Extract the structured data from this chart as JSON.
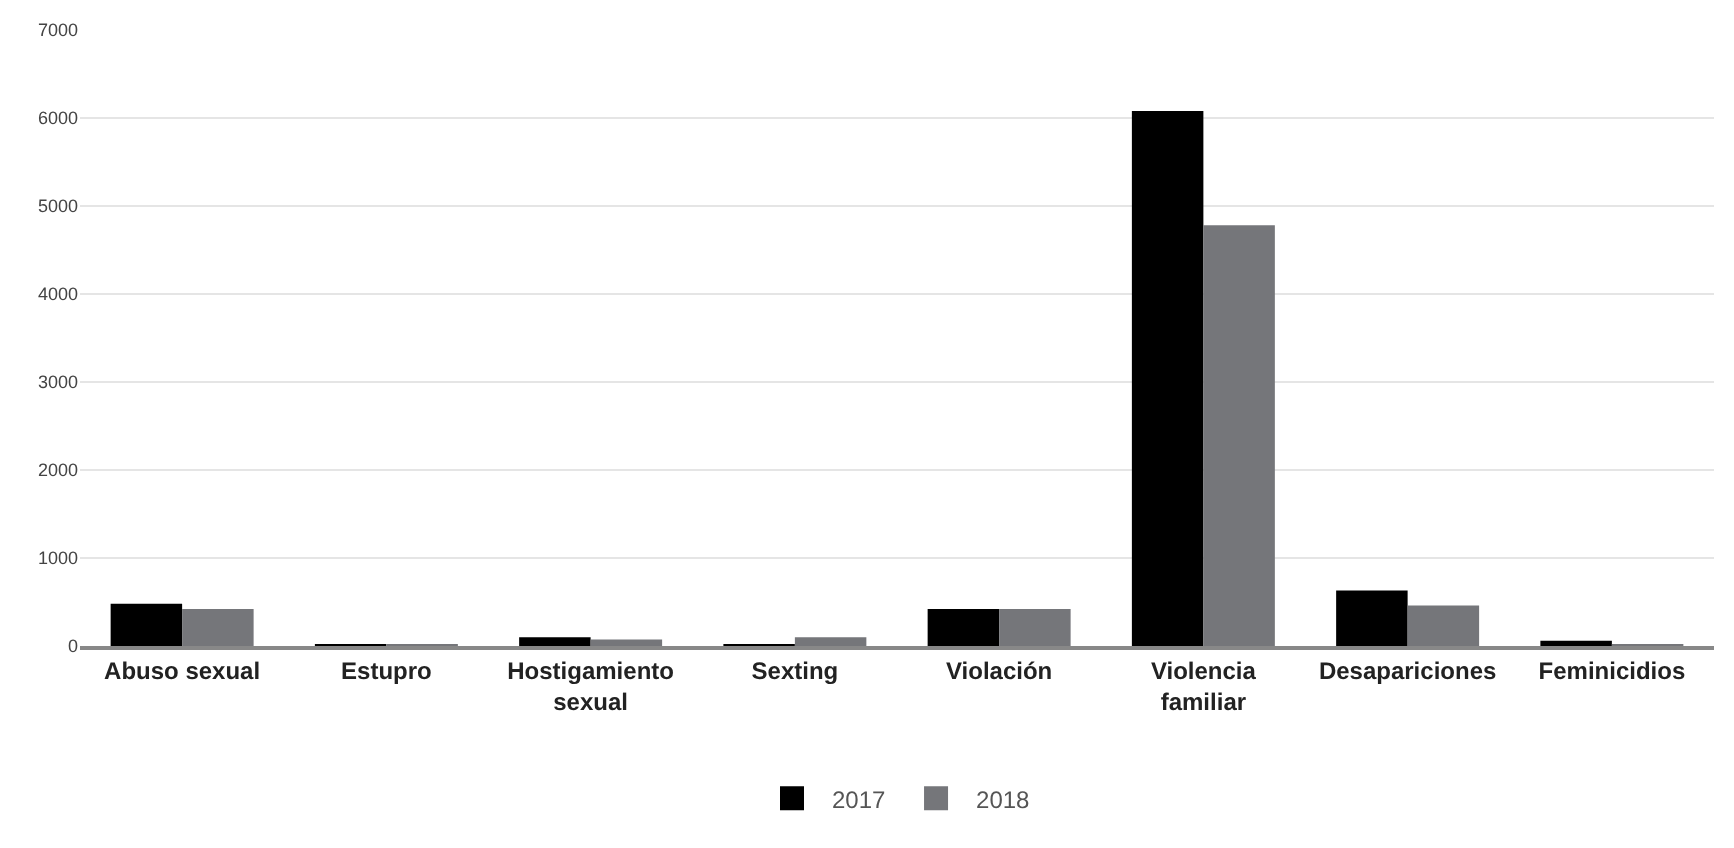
{
  "chart_data": {
    "type": "bar",
    "categories": [
      "Abuso sexual",
      "Estupro",
      "Hostigamiento sexual",
      "Sexting",
      "Violación",
      "Violencia familiar",
      "Desapariciones",
      "Feminicidios"
    ],
    "series": [
      {
        "name": "2017",
        "color": "#000000",
        "values": [
          480,
          10,
          100,
          10,
          420,
          6080,
          630,
          60
        ]
      },
      {
        "name": "2018",
        "color": "#75767a",
        "values": [
          420,
          10,
          75,
          100,
          420,
          4780,
          460,
          15
        ]
      }
    ],
    "ylim": [
      0,
      7000
    ],
    "yticks": [
      0,
      1000,
      2000,
      3000,
      4000,
      5000,
      6000,
      7000
    ],
    "grid": "y",
    "legend": "bottom"
  }
}
